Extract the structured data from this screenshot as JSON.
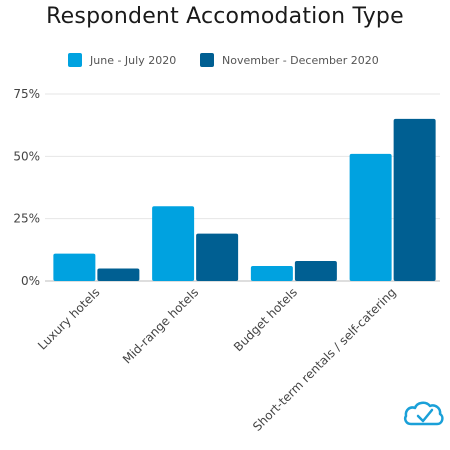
{
  "chart_data": {
    "type": "bar",
    "title": "Respondent Accomodation Type",
    "categories": [
      "Luxury hotels",
      "Mid-range hotels",
      "Budget hotels",
      "Short-term rentals / self-catering"
    ],
    "series": [
      {
        "name": "June - July 2020",
        "values": [
          11,
          30,
          6,
          51
        ],
        "color": "#00a2e0"
      },
      {
        "name": "November - December 2020",
        "values": [
          5,
          19,
          8,
          65
        ],
        "color": "#005f92"
      }
    ],
    "yticks": [
      "0%",
      "25%",
      "50%",
      "75%"
    ],
    "ytick_values": [
      0,
      25,
      50,
      75
    ],
    "ylim": [
      0,
      75
    ],
    "grid": true,
    "legend_position": "top-center",
    "logo_icon": "cloud-check-icon"
  }
}
